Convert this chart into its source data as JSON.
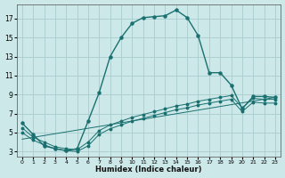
{
  "xlabel": "Humidex (Indice chaleur)",
  "bg_color": "#cce8e8",
  "grid_color": "#aacccc",
  "line_color": "#1a7070",
  "xlim": [
    -0.5,
    23.5
  ],
  "ylim": [
    2.5,
    18.5
  ],
  "xticks": [
    0,
    1,
    2,
    3,
    4,
    5,
    6,
    7,
    8,
    9,
    10,
    11,
    12,
    13,
    14,
    15,
    16,
    17,
    18,
    19,
    20,
    21,
    22,
    23
  ],
  "yticks": [
    3,
    5,
    7,
    9,
    11,
    13,
    15,
    17
  ],
  "series1_x": [
    0,
    1,
    2,
    3,
    4,
    5,
    6,
    7,
    8,
    9,
    10,
    11,
    12,
    13,
    14,
    15,
    16,
    17,
    18,
    19,
    20,
    21,
    22,
    23
  ],
  "series1_y": [
    6.0,
    4.8,
    3.6,
    3.3,
    3.1,
    3.3,
    6.2,
    9.2,
    13.0,
    15.0,
    16.5,
    17.1,
    17.2,
    17.3,
    17.9,
    17.1,
    15.2,
    11.3,
    11.3,
    10.0,
    7.5,
    8.8,
    8.8,
    8.7
  ],
  "series2_x": [
    0,
    1,
    2,
    3,
    4,
    5,
    6,
    7,
    8,
    9,
    10,
    11,
    12,
    13,
    14,
    15,
    16,
    17,
    18,
    19,
    20,
    21,
    22,
    23
  ],
  "series2_y": [
    5.5,
    4.5,
    4.0,
    3.5,
    3.3,
    3.2,
    4.0,
    5.2,
    5.8,
    6.2,
    6.6,
    6.9,
    7.2,
    7.5,
    7.8,
    8.0,
    8.3,
    8.5,
    8.7,
    8.9,
    7.6,
    8.6,
    8.5,
    8.5
  ],
  "series3_x": [
    0,
    1,
    2,
    3,
    4,
    5,
    6,
    7,
    8,
    9,
    10,
    11,
    12,
    13,
    14,
    15,
    16,
    17,
    18,
    19,
    20,
    21,
    22,
    23
  ],
  "series3_y": [
    5.0,
    4.2,
    3.7,
    3.3,
    3.1,
    3.0,
    3.6,
    4.8,
    5.4,
    5.8,
    6.2,
    6.5,
    6.8,
    7.1,
    7.4,
    7.6,
    7.9,
    8.1,
    8.3,
    8.5,
    7.2,
    8.2,
    8.1,
    8.1
  ],
  "series4_x": [
    0,
    23
  ],
  "series4_y": [
    4.3,
    8.7
  ]
}
